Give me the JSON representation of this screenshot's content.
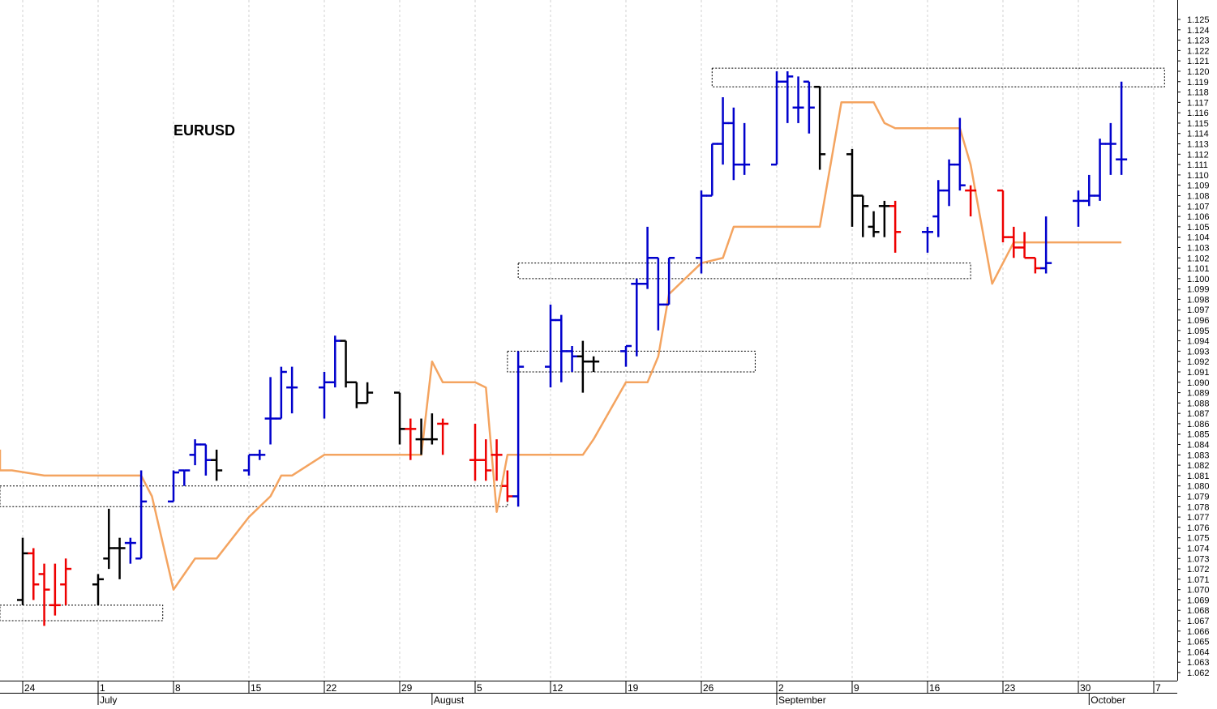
{
  "chart_data": {
    "type": "ohlc",
    "title": "EURUSD",
    "grid": true,
    "ylim": [
      1.0615,
      1.1255
    ],
    "y_ticks": [
      "1.125",
      "1.124",
      "1.123",
      "1.122",
      "1.121",
      "1.120",
      "1.119",
      "1.118",
      "1.117",
      "1.116",
      "1.115",
      "1.114",
      "1.113",
      "1.112",
      "1.111",
      "1.110",
      "1.109",
      "1.108",
      "1.107",
      "1.106",
      "1.105",
      "1.104",
      "1.103",
      "1.102",
      "1.101",
      "1.100",
      "1.099",
      "1.098",
      "1.097",
      "1.096",
      "1.095",
      "1.094",
      "1.093",
      "1.092",
      "1.091",
      "1.090",
      "1.089",
      "1.088",
      "1.087",
      "1.086",
      "1.085",
      "1.084",
      "1.083",
      "1.082",
      "1.081",
      "1.080",
      "1.079",
      "1.078",
      "1.077",
      "1.076",
      "1.075",
      "1.074",
      "1.073",
      "1.072",
      "1.071",
      "1.070",
      "1.069",
      "1.068",
      "1.067",
      "1.066",
      "1.065",
      "1.064",
      "1.063",
      "1.062"
    ],
    "x_start": "2019-06-20",
    "x_end": "2019-10-09",
    "x_ticks": [
      {
        "date": "2019-06-24",
        "label": "24"
      },
      {
        "date": "2019-07-01",
        "label": "1"
      },
      {
        "date": "2019-07-08",
        "label": "8"
      },
      {
        "date": "2019-07-15",
        "label": "15"
      },
      {
        "date": "2019-07-22",
        "label": "22"
      },
      {
        "date": "2019-07-29",
        "label": "29"
      },
      {
        "date": "2019-08-05",
        "label": "5"
      },
      {
        "date": "2019-08-12",
        "label": "12"
      },
      {
        "date": "2019-08-19",
        "label": "19"
      },
      {
        "date": "2019-08-26",
        "label": "26"
      },
      {
        "date": "2019-09-02",
        "label": "2"
      },
      {
        "date": "2019-09-09",
        "label": "9"
      },
      {
        "date": "2019-09-16",
        "label": "16"
      },
      {
        "date": "2019-09-23",
        "label": "23"
      },
      {
        "date": "2019-09-30",
        "label": "30"
      },
      {
        "date": "2019-10-07",
        "label": "7"
      }
    ],
    "months": [
      {
        "date": "2019-07-01",
        "label": "July"
      },
      {
        "date": "2019-08-01",
        "label": "August"
      },
      {
        "date": "2019-09-02",
        "label": "September"
      },
      {
        "date": "2019-10-01",
        "label": "October"
      }
    ],
    "colors": {
      "up": "#0000cc",
      "down": "#ee0000",
      "neutral": "#000000",
      "line": "#f4a460",
      "box": "#000000"
    },
    "bars": [
      {
        "date": "2019-06-20",
        "o": 1.071,
        "h": 1.073,
        "l": 1.068,
        "c": 1.07,
        "color": "down"
      },
      {
        "date": "2019-06-21",
        "o": 1.072,
        "h": 1.0735,
        "l": 1.067,
        "c": 1.069,
        "color": "down"
      },
      {
        "date": "2019-06-24",
        "o": 1.069,
        "h": 1.075,
        "l": 1.0685,
        "c": 1.0735,
        "color": "neutral"
      },
      {
        "date": "2019-06-25",
        "o": 1.0735,
        "h": 1.074,
        "l": 1.069,
        "c": 1.0705,
        "color": "down"
      },
      {
        "date": "2019-06-26",
        "o": 1.0715,
        "h": 1.0725,
        "l": 1.0665,
        "c": 1.07,
        "color": "down"
      },
      {
        "date": "2019-06-27",
        "o": 1.0685,
        "h": 1.0725,
        "l": 1.0675,
        "c": 1.0685,
        "color": "down"
      },
      {
        "date": "2019-06-28",
        "o": 1.0705,
        "h": 1.073,
        "l": 1.0685,
        "c": 1.072,
        "color": "down"
      },
      {
        "date": "2019-07-01",
        "o": 1.0705,
        "h": 1.0715,
        "l": 1.0685,
        "c": 1.071,
        "color": "neutral"
      },
      {
        "date": "2019-07-02",
        "o": 1.073,
        "h": 1.0778,
        "l": 1.072,
        "c": 1.074,
        "color": "neutral"
      },
      {
        "date": "2019-07-03",
        "o": 1.074,
        "h": 1.075,
        "l": 1.071,
        "c": 1.074,
        "color": "neutral"
      },
      {
        "date": "2019-07-04",
        "o": 1.0745,
        "h": 1.075,
        "l": 1.0725,
        "c": 1.0745,
        "color": "up"
      },
      {
        "date": "2019-07-05",
        "o": 1.073,
        "h": 1.0815,
        "l": 1.073,
        "c": 1.0785,
        "color": "up"
      },
      {
        "date": "2019-07-08",
        "o": 1.0785,
        "h": 1.0815,
        "l": 1.0785,
        "c": 1.0813,
        "color": "up"
      },
      {
        "date": "2019-07-09",
        "o": 1.0815,
        "h": 1.0815,
        "l": 1.08,
        "c": 1.0815,
        "color": "up"
      },
      {
        "date": "2019-07-10",
        "o": 1.083,
        "h": 1.0845,
        "l": 1.082,
        "c": 1.084,
        "color": "up"
      },
      {
        "date": "2019-07-11",
        "o": 1.084,
        "h": 1.084,
        "l": 1.081,
        "c": 1.0825,
        "color": "up"
      },
      {
        "date": "2019-07-12",
        "o": 1.0825,
        "h": 1.0835,
        "l": 1.0805,
        "c": 1.0815,
        "color": "neutral"
      },
      {
        "date": "2019-07-15",
        "o": 1.0815,
        "h": 1.083,
        "l": 1.081,
        "c": 1.083,
        "color": "up"
      },
      {
        "date": "2019-07-16",
        "o": 1.083,
        "h": 1.0835,
        "l": 1.0825,
        "c": 1.083,
        "color": "up"
      },
      {
        "date": "2019-07-17",
        "o": 1.0865,
        "h": 1.0905,
        "l": 1.084,
        "c": 1.0865,
        "color": "up"
      },
      {
        "date": "2019-07-18",
        "o": 1.0865,
        "h": 1.0915,
        "l": 1.0865,
        "c": 1.091,
        "color": "up"
      },
      {
        "date": "2019-07-19",
        "o": 1.0895,
        "h": 1.0915,
        "l": 1.087,
        "c": 1.0895,
        "color": "up"
      },
      {
        "date": "2019-07-22",
        "o": 1.0895,
        "h": 1.091,
        "l": 1.0865,
        "c": 1.09,
        "color": "up"
      },
      {
        "date": "2019-07-23",
        "o": 1.09,
        "h": 1.0945,
        "l": 1.0895,
        "c": 1.094,
        "color": "up"
      },
      {
        "date": "2019-07-24",
        "o": 1.094,
        "h": 1.094,
        "l": 1.0895,
        "c": 1.09,
        "color": "neutral"
      },
      {
        "date": "2019-07-25",
        "o": 1.09,
        "h": 1.09,
        "l": 1.0875,
        "c": 1.088,
        "color": "neutral"
      },
      {
        "date": "2019-07-26",
        "o": 1.088,
        "h": 1.09,
        "l": 1.088,
        "c": 1.089,
        "color": "neutral"
      },
      {
        "date": "2019-07-29",
        "o": 1.089,
        "h": 1.089,
        "l": 1.084,
        "c": 1.0855,
        "color": "neutral"
      },
      {
        "date": "2019-07-30",
        "o": 1.0855,
        "h": 1.0865,
        "l": 1.0825,
        "c": 1.0855,
        "color": "down"
      },
      {
        "date": "2019-07-31",
        "o": 1.0845,
        "h": 1.0865,
        "l": 1.083,
        "c": 1.0845,
        "color": "neutral"
      },
      {
        "date": "2019-08-01",
        "o": 1.0845,
        "h": 1.087,
        "l": 1.084,
        "c": 1.0845,
        "color": "neutral"
      },
      {
        "date": "2019-08-02",
        "o": 1.086,
        "h": 1.0865,
        "l": 1.083,
        "c": 1.086,
        "color": "down"
      },
      {
        "date": "2019-08-05",
        "o": 1.0825,
        "h": 1.086,
        "l": 1.0805,
        "c": 1.0825,
        "color": "down"
      },
      {
        "date": "2019-08-06",
        "o": 1.0825,
        "h": 1.0845,
        "l": 1.0805,
        "c": 1.0815,
        "color": "down"
      },
      {
        "date": "2019-08-07",
        "o": 1.083,
        "h": 1.0845,
        "l": 1.0805,
        "c": 1.083,
        "color": "down"
      },
      {
        "date": "2019-08-08",
        "o": 1.08,
        "h": 1.0815,
        "l": 1.0785,
        "c": 1.079,
        "color": "down"
      },
      {
        "date": "2019-08-09",
        "o": 1.079,
        "h": 1.093,
        "l": 1.078,
        "c": 1.0915,
        "color": "up"
      },
      {
        "date": "2019-08-12",
        "o": 1.0915,
        "h": 1.0975,
        "l": 1.0895,
        "c": 1.096,
        "color": "up"
      },
      {
        "date": "2019-08-13",
        "o": 1.096,
        "h": 1.0965,
        "l": 1.09,
        "c": 1.093,
        "color": "up"
      },
      {
        "date": "2019-08-14",
        "o": 1.093,
        "h": 1.0935,
        "l": 1.091,
        "c": 1.0925,
        "color": "up"
      },
      {
        "date": "2019-08-15",
        "o": 1.0925,
        "h": 1.094,
        "l": 1.089,
        "c": 1.092,
        "color": "neutral"
      },
      {
        "date": "2019-08-16",
        "o": 1.092,
        "h": 1.0925,
        "l": 1.091,
        "c": 1.092,
        "color": "neutral"
      },
      {
        "date": "2019-08-19",
        "o": 1.093,
        "h": 1.0935,
        "l": 1.0915,
        "c": 1.0935,
        "color": "up"
      },
      {
        "date": "2019-08-20",
        "o": 1.0995,
        "h": 1.1,
        "l": 1.0925,
        "c": 1.0995,
        "color": "up"
      },
      {
        "date": "2019-08-21",
        "o": 1.0995,
        "h": 1.105,
        "l": 1.099,
        "c": 1.102,
        "color": "up"
      },
      {
        "date": "2019-08-22",
        "o": 1.102,
        "h": 1.102,
        "l": 1.095,
        "c": 1.0975,
        "color": "up"
      },
      {
        "date": "2019-08-23",
        "o": 1.0975,
        "h": 1.102,
        "l": 1.0975,
        "c": 1.102,
        "color": "up"
      },
      {
        "date": "2019-08-26",
        "o": 1.102,
        "h": 1.1085,
        "l": 1.1005,
        "c": 1.108,
        "color": "up"
      },
      {
        "date": "2019-08-27",
        "o": 1.108,
        "h": 1.113,
        "l": 1.108,
        "c": 1.113,
        "color": "up"
      },
      {
        "date": "2019-08-28",
        "o": 1.113,
        "h": 1.1175,
        "l": 1.111,
        "c": 1.115,
        "color": "up"
      },
      {
        "date": "2019-08-29",
        "o": 1.115,
        "h": 1.1165,
        "l": 1.1095,
        "c": 1.111,
        "color": "up"
      },
      {
        "date": "2019-08-30",
        "o": 1.111,
        "h": 1.115,
        "l": 1.11,
        "c": 1.111,
        "color": "up"
      },
      {
        "date": "2019-09-02",
        "o": 1.111,
        "h": 1.12,
        "l": 1.111,
        "c": 1.119,
        "color": "up"
      },
      {
        "date": "2019-09-03",
        "o": 1.119,
        "h": 1.12,
        "l": 1.115,
        "c": 1.1195,
        "color": "up"
      },
      {
        "date": "2019-09-04",
        "o": 1.1165,
        "h": 1.1195,
        "l": 1.115,
        "c": 1.1165,
        "color": "up"
      },
      {
        "date": "2019-09-05",
        "o": 1.119,
        "h": 1.119,
        "l": 1.114,
        "c": 1.1165,
        "color": "up"
      },
      {
        "date": "2019-09-06",
        "o": 1.1185,
        "h": 1.1185,
        "l": 1.1105,
        "c": 1.112,
        "color": "neutral"
      },
      {
        "date": "2019-09-09",
        "o": 1.112,
        "h": 1.1125,
        "l": 1.105,
        "c": 1.108,
        "color": "neutral"
      },
      {
        "date": "2019-09-10",
        "o": 1.108,
        "h": 1.108,
        "l": 1.104,
        "c": 1.107,
        "color": "neutral"
      },
      {
        "date": "2019-09-11",
        "o": 1.105,
        "h": 1.1065,
        "l": 1.104,
        "c": 1.1045,
        "color": "neutral"
      },
      {
        "date": "2019-09-12",
        "o": 1.107,
        "h": 1.1075,
        "l": 1.104,
        "c": 1.107,
        "color": "neutral"
      },
      {
        "date": "2019-09-13",
        "o": 1.107,
        "h": 1.1075,
        "l": 1.1025,
        "c": 1.1045,
        "color": "down"
      },
      {
        "date": "2019-09-16",
        "o": 1.1045,
        "h": 1.105,
        "l": 1.1025,
        "c": 1.1045,
        "color": "up"
      },
      {
        "date": "2019-09-17",
        "o": 1.106,
        "h": 1.1095,
        "l": 1.104,
        "c": 1.1085,
        "color": "up"
      },
      {
        "date": "2019-09-18",
        "o": 1.1085,
        "h": 1.1115,
        "l": 1.107,
        "c": 1.111,
        "color": "up"
      },
      {
        "date": "2019-09-19",
        "o": 1.111,
        "h": 1.1155,
        "l": 1.1085,
        "c": 1.109,
        "color": "up"
      },
      {
        "date": "2019-09-20",
        "o": 1.1085,
        "h": 1.109,
        "l": 1.106,
        "c": 1.1085,
        "color": "down"
      },
      {
        "date": "2019-09-23",
        "o": 1.1085,
        "h": 1.1085,
        "l": 1.1035,
        "c": 1.104,
        "color": "down"
      },
      {
        "date": "2019-09-24",
        "o": 1.104,
        "h": 1.105,
        "l": 1.102,
        "c": 1.103,
        "color": "down"
      },
      {
        "date": "2019-09-25",
        "o": 1.103,
        "h": 1.1045,
        "l": 1.102,
        "c": 1.102,
        "color": "down"
      },
      {
        "date": "2019-09-26",
        "o": 1.102,
        "h": 1.102,
        "l": 1.1005,
        "c": 1.101,
        "color": "down"
      },
      {
        "date": "2019-09-27",
        "o": 1.101,
        "h": 1.106,
        "l": 1.1005,
        "c": 1.1015,
        "color": "up"
      },
      {
        "date": "2019-09-30",
        "o": 1.1075,
        "h": 1.1085,
        "l": 1.105,
        "c": 1.1075,
        "color": "up"
      },
      {
        "date": "2019-10-01",
        "o": 1.1075,
        "h": 1.11,
        "l": 1.107,
        "c": 1.108,
        "color": "up"
      },
      {
        "date": "2019-10-02",
        "o": 1.108,
        "h": 1.1135,
        "l": 1.1075,
        "c": 1.113,
        "color": "up"
      },
      {
        "date": "2019-10-03",
        "o": 1.113,
        "h": 1.115,
        "l": 1.11,
        "c": 1.113,
        "color": "up"
      },
      {
        "date": "2019-10-04",
        "o": 1.1115,
        "h": 1.119,
        "l": 1.11,
        "c": 1.1115,
        "color": "up"
      }
    ],
    "overlay": [
      [
        "2019-06-18",
        1.0835
      ],
      [
        "2019-06-19",
        1.0815
      ],
      [
        "2019-06-23",
        1.0815
      ],
      [
        "2019-06-26",
        1.081
      ],
      [
        "2019-07-05",
        1.081
      ],
      [
        "2019-07-06",
        1.079
      ],
      [
        "2019-07-08",
        1.07
      ],
      [
        "2019-07-09",
        1.0715
      ],
      [
        "2019-07-10",
        1.073
      ],
      [
        "2019-07-12",
        1.073
      ],
      [
        "2019-07-15",
        1.077
      ],
      [
        "2019-07-17",
        1.079
      ],
      [
        "2019-07-18",
        1.081
      ],
      [
        "2019-07-19",
        1.081
      ],
      [
        "2019-07-22",
        1.083
      ],
      [
        "2019-07-31",
        1.083
      ],
      [
        "2019-08-01",
        1.092
      ],
      [
        "2019-08-02",
        1.09
      ],
      [
        "2019-08-05",
        1.09
      ],
      [
        "2019-08-06",
        1.0895
      ],
      [
        "2019-08-07",
        1.0775
      ],
      [
        "2019-08-08",
        1.083
      ],
      [
        "2019-08-15",
        1.083
      ],
      [
        "2019-08-16",
        1.0845
      ],
      [
        "2019-08-19",
        1.09
      ],
      [
        "2019-08-21",
        1.09
      ],
      [
        "2019-08-22",
        1.0925
      ],
      [
        "2019-08-23",
        1.0985
      ],
      [
        "2019-08-26",
        1.1015
      ],
      [
        "2019-08-28",
        1.102
      ],
      [
        "2019-08-29",
        1.105
      ],
      [
        "2019-09-06",
        1.105
      ],
      [
        "2019-09-08",
        1.117
      ],
      [
        "2019-09-11",
        1.117
      ],
      [
        "2019-09-12",
        1.115
      ],
      [
        "2019-09-13",
        1.1145
      ],
      [
        "2019-09-19",
        1.1145
      ],
      [
        "2019-09-20",
        1.111
      ],
      [
        "2019-09-22",
        1.0995
      ],
      [
        "2019-09-24",
        1.1035
      ],
      [
        "2019-10-04",
        1.1035
      ]
    ],
    "zones": [
      {
        "start": "2019-06-19",
        "end": "2019-07-07",
        "low": 1.067,
        "high": 1.0685
      },
      {
        "start": "2019-06-19",
        "end": "2019-08-08",
        "low": 1.078,
        "high": 1.08
      },
      {
        "start": "2019-08-08",
        "end": "2019-08-31",
        "low": 1.091,
        "high": 1.093
      },
      {
        "start": "2019-08-09",
        "end": "2019-09-20",
        "low": 1.1,
        "high": 1.1015
      },
      {
        "start": "2019-08-27",
        "end": "2019-10-08",
        "low": 1.1185,
        "high": 1.1203
      }
    ]
  }
}
